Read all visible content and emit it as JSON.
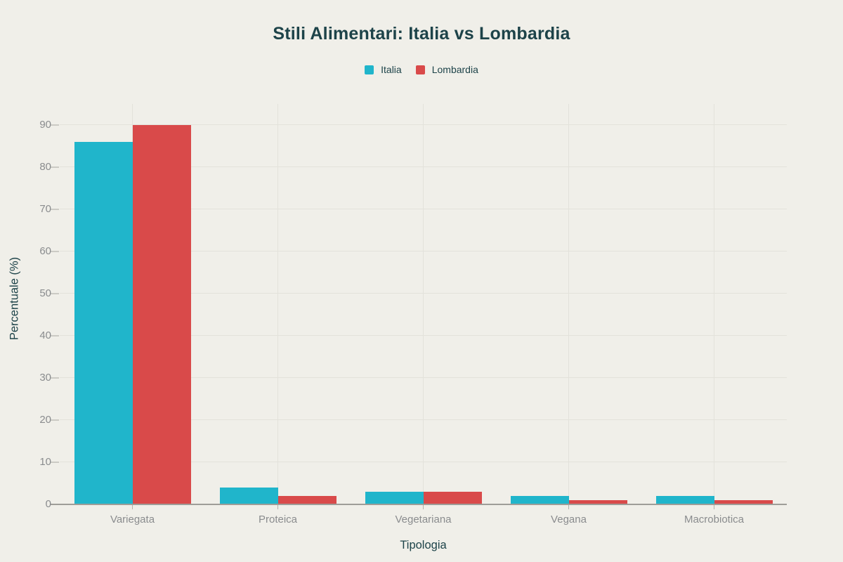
{
  "page": {
    "background_color": "#f0efe9"
  },
  "chart_data": {
    "type": "bar",
    "bar_mode": "grouped",
    "title": "Stili Alimentari: Italia vs Lombardia",
    "categories": [
      "Variegata",
      "Proteica",
      "Vegetariana",
      "Vegana",
      "Macrobiotica"
    ],
    "series": [
      {
        "name": "Italia",
        "color": "#20b5cb",
        "values": [
          86,
          4,
          3,
          2,
          2
        ]
      },
      {
        "name": "Lombardia",
        "color": "#d94a4a",
        "values": [
          90,
          2,
          3,
          1,
          1
        ]
      }
    ],
    "xlabel": "Tipologia",
    "ylabel": "Percentuale (%)",
    "ylim": [
      0,
      95
    ],
    "yticks": [
      0,
      10,
      20,
      30,
      40,
      50,
      60,
      70,
      80,
      90
    ],
    "grid": true,
    "legend_position": "top-center",
    "style": {
      "background": "#f0efe9",
      "grid_color": "#e3e2db",
      "axis_line_color": "#9e9d98",
      "y_tick_mark_color": "#cbcac4",
      "x_tick_mark_color": "#b3b2ad",
      "tick_label_color": "#8a8c8e",
      "title_color": "#1d4349",
      "axis_title_color": "#1d4349",
      "legend_text_color": "#1d4349"
    }
  }
}
